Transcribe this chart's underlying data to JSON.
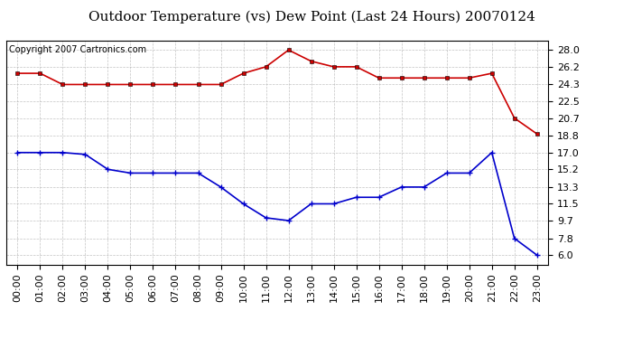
{
  "title": "Outdoor Temperature (vs) Dew Point (Last 24 Hours) 20070124",
  "copyright_text": "Copyright 2007 Cartronics.com",
  "hours": [
    "00:00",
    "01:00",
    "02:00",
    "03:00",
    "04:00",
    "05:00",
    "06:00",
    "07:00",
    "08:00",
    "09:00",
    "10:00",
    "11:00",
    "12:00",
    "13:00",
    "14:00",
    "15:00",
    "16:00",
    "17:00",
    "18:00",
    "19:00",
    "20:00",
    "21:00",
    "22:00",
    "23:00"
  ],
  "temp_red": [
    25.5,
    25.5,
    24.3,
    24.3,
    24.3,
    24.3,
    24.3,
    24.3,
    24.3,
    24.3,
    25.5,
    26.2,
    28.0,
    26.8,
    26.2,
    26.2,
    25.0,
    25.0,
    25.0,
    25.0,
    25.0,
    25.5,
    20.7,
    19.0
  ],
  "temp_blue": [
    17.0,
    17.0,
    17.0,
    16.8,
    15.2,
    14.8,
    14.8,
    14.8,
    14.8,
    13.3,
    11.5,
    10.0,
    9.7,
    11.5,
    11.5,
    12.2,
    12.2,
    13.3,
    13.3,
    14.8,
    14.8,
    17.0,
    7.8,
    6.0
  ],
  "yticks": [
    6.0,
    7.8,
    9.7,
    11.5,
    13.3,
    15.2,
    17.0,
    18.8,
    20.7,
    22.5,
    24.3,
    26.2,
    28.0
  ],
  "ymin": 5.0,
  "ymax": 29.0,
  "bg_color": "#ffffff",
  "plot_bg_color": "#ffffff",
  "grid_color": "#aaaaaa",
  "red_color": "#cc0000",
  "blue_color": "#0000cc",
  "title_fontsize": 11,
  "tick_fontsize": 8,
  "copyright_fontsize": 7
}
